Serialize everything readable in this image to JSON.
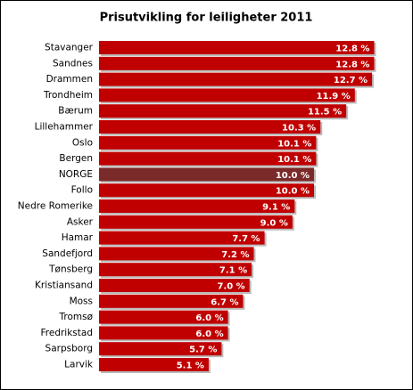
{
  "chart_data": {
    "type": "hbar",
    "title": "Prisutvikling for leiligheter 2011",
    "categories": [
      "Stavanger",
      "Sandnes",
      "Drammen",
      "Trondheim",
      "Bærum",
      "Lillehammer",
      "Oslo",
      "Bergen",
      "NORGE",
      "Follo",
      "Nedre Romerike",
      "Asker",
      "Hamar",
      "Sandefjord",
      "Tønsberg",
      "Kristiansand",
      "Moss",
      "Tromsø",
      "Fredrikstad",
      "Sarpsborg",
      "Larvik"
    ],
    "values": [
      12.8,
      12.8,
      12.7,
      11.9,
      11.5,
      10.3,
      10.1,
      10.1,
      10.0,
      10.0,
      9.1,
      9.0,
      7.7,
      7.2,
      7.1,
      7.0,
      6.7,
      6.0,
      6.0,
      5.7,
      5.1
    ],
    "value_labels": [
      "12.8 %",
      "12.8 %",
      "12.7 %",
      "11.9 %",
      "11.5 %",
      "10.3 %",
      "10.1 %",
      "10.1 %",
      "10.0 %",
      "10.0 %",
      "9.1 %",
      "9.0 %",
      "7.7 %",
      "7.2 %",
      "7.1 %",
      "7.0 %",
      "6.7 %",
      "6.0 %",
      "6.0 %",
      "5.7 %",
      "5.1 %"
    ],
    "colors": [
      "#c00000",
      "#c00000",
      "#c00000",
      "#c00000",
      "#c00000",
      "#c00000",
      "#c00000",
      "#c00000",
      "#7b2a2a",
      "#c00000",
      "#c00000",
      "#c00000",
      "#c00000",
      "#c00000",
      "#c00000",
      "#c00000",
      "#c00000",
      "#c00000",
      "#c00000",
      "#c00000",
      "#c00000"
    ]
  }
}
